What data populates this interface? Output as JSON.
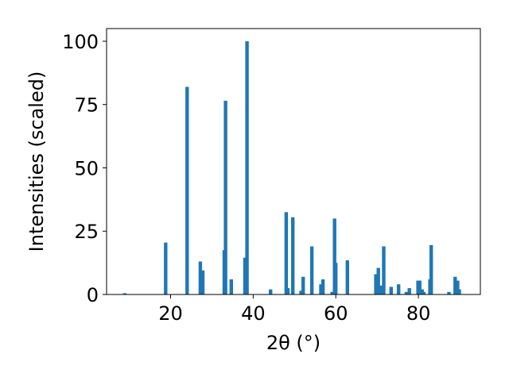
{
  "chart_data": {
    "type": "bar",
    "xlabel": "2θ (°)",
    "ylabel": "Intensities (scaled)",
    "xlim": [
      4.5,
      95
    ],
    "ylim": [
      0,
      105
    ],
    "x_ticks": [
      20,
      40,
      60,
      80
    ],
    "y_ticks": [
      0,
      25,
      50,
      75,
      100
    ],
    "grid": false,
    "bar_color": "#1f77b4",
    "series": [
      {
        "x": [
          8.9,
          18.8,
          24.0,
          27.2,
          27.8,
          33.0,
          33.3,
          34.7,
          38.0,
          38.5,
          44.2,
          48.0,
          48.4,
          49.6,
          51.6,
          52.1,
          54.2,
          56.4,
          56.9,
          59.1,
          59.7,
          60.0,
          62.8,
          69.7,
          70.3,
          70.8,
          71.6,
          73.4,
          75.2,
          77.1,
          77.8,
          79.9,
          80.3,
          80.9,
          81.3,
          82.8,
          83.1,
          87.4,
          88.9,
          89.5,
          89.9
        ],
        "y": [
          0.5,
          20.5,
          82.0,
          13.0,
          9.5,
          17.5,
          76.5,
          6.0,
          14.5,
          100.0,
          2.0,
          32.5,
          2.5,
          30.5,
          1.5,
          7.0,
          19.0,
          4.0,
          6.0,
          1.0,
          30.0,
          12.5,
          13.5,
          8.0,
          10.5,
          3.5,
          19.0,
          3.0,
          4.0,
          1.0,
          2.5,
          5.5,
          5.5,
          2.0,
          1.0,
          6.0,
          19.5,
          1.0,
          7.0,
          5.5,
          2.0
        ]
      }
    ]
  }
}
